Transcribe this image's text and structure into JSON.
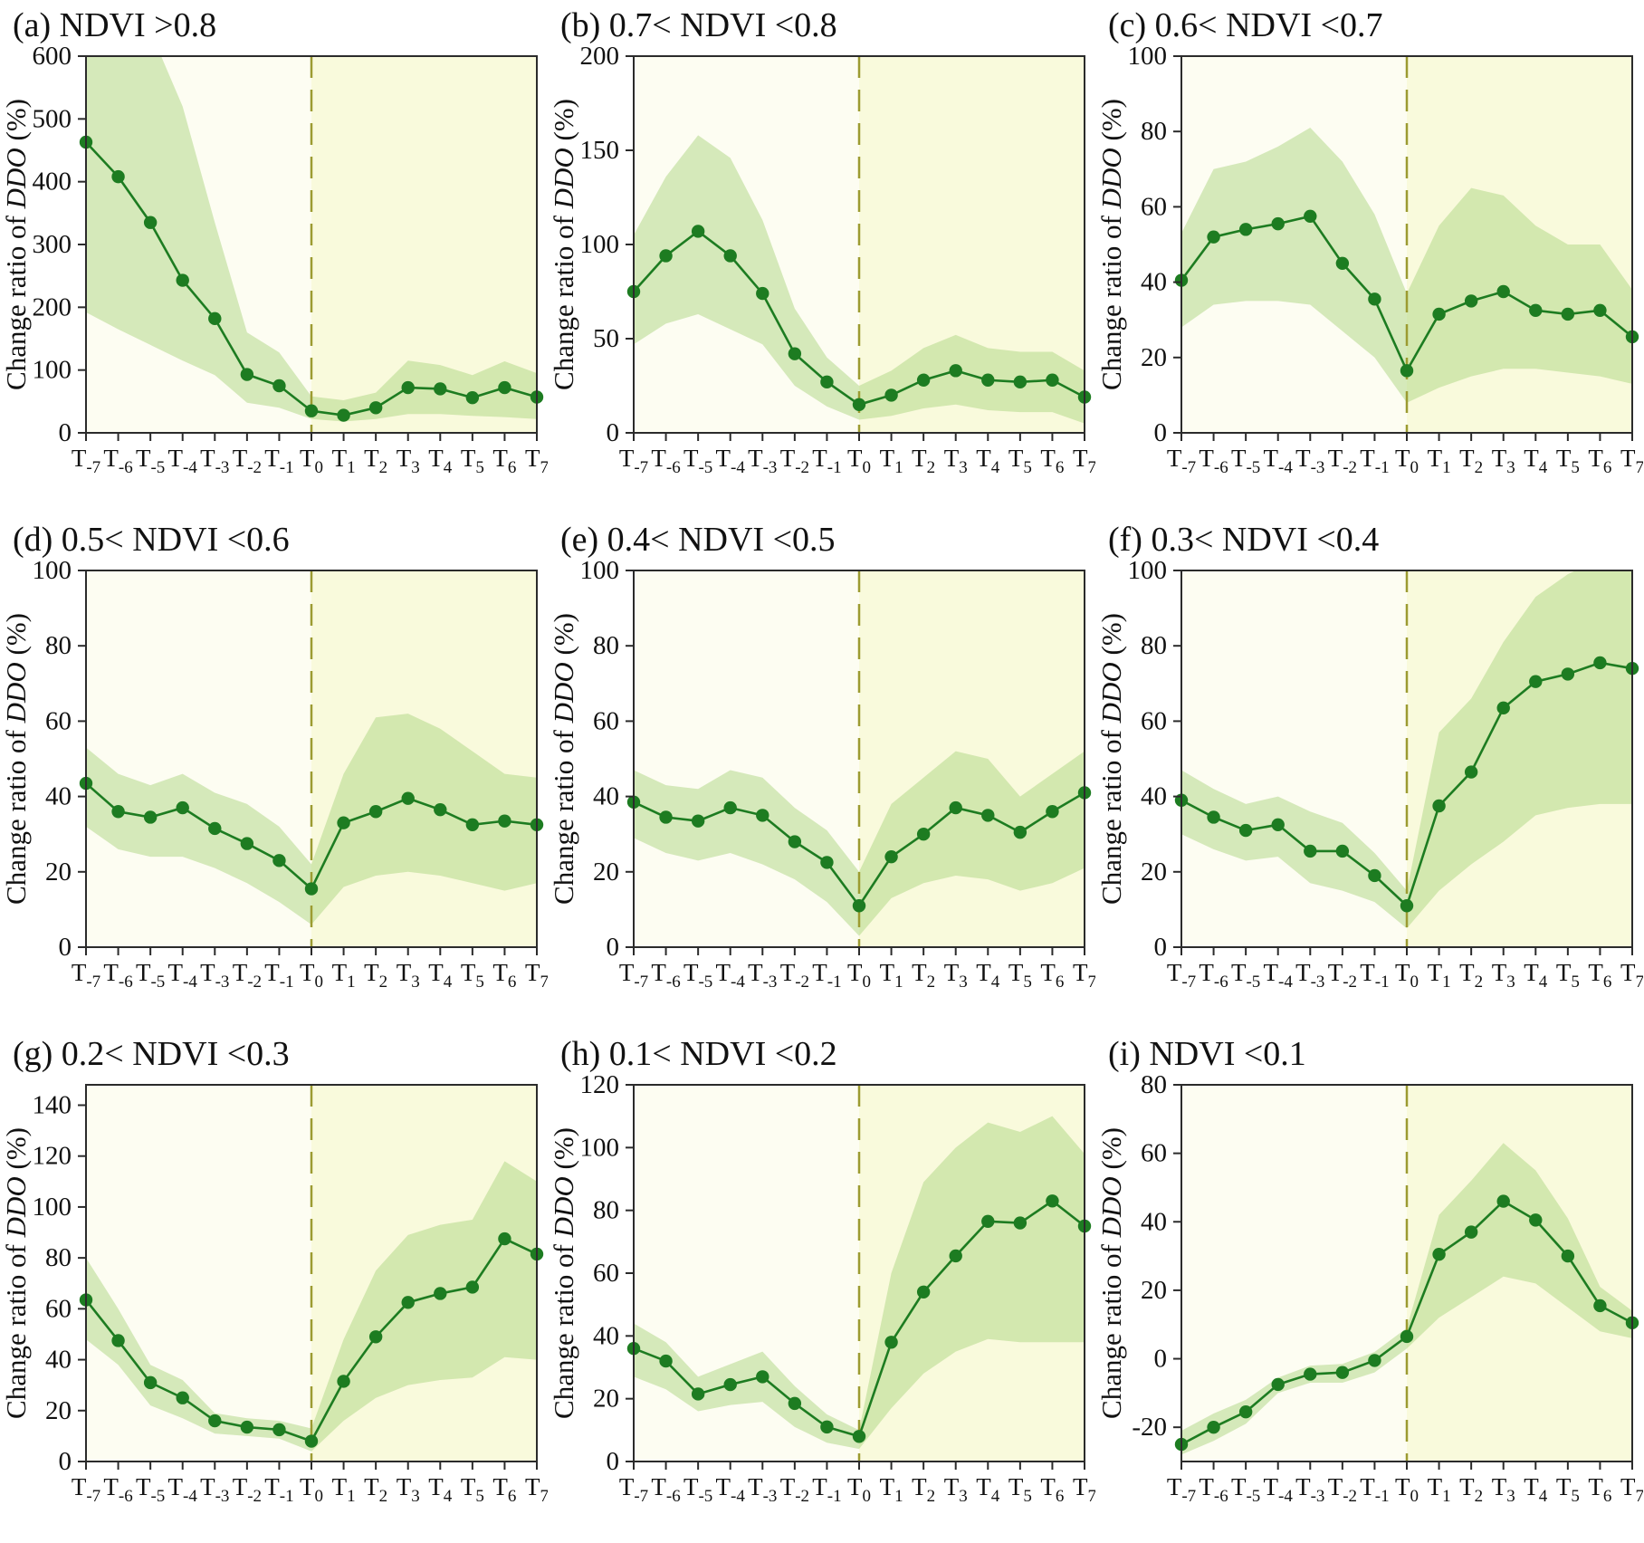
{
  "figure": {
    "ylabel": {
      "prefix": "Change ratio of ",
      "italic": "DDO",
      "suffix": " (%)"
    },
    "x_category_main": "T",
    "colors": {
      "line": "#1d7c21",
      "marker": "#1d7c21",
      "band": "#aed581",
      "band_opacity": 0.5,
      "left_background": "#fdfdf2",
      "right_background": "#f9fadc",
      "event_line": "#9c9b31",
      "axis": "#2b2b2b",
      "text": "#111111"
    }
  },
  "chart_data": [
    {
      "type": "line",
      "label": "(a)",
      "title": "NDVI >0.8",
      "ylim": [
        0,
        600
      ],
      "yticks": [
        0,
        100,
        200,
        300,
        400,
        500,
        600
      ],
      "categories": [
        "T-7",
        "T-6",
        "T-5",
        "T-4",
        "T-3",
        "T-2",
        "T-1",
        "T0",
        "T1",
        "T2",
        "T3",
        "T4",
        "T5",
        "T6",
        "T7"
      ],
      "event_index": 7,
      "values": [
        463,
        408,
        335,
        243,
        182,
        93,
        75,
        35,
        28,
        40,
        72,
        70,
        56,
        72,
        57
      ],
      "band_upper": [
        650,
        650,
        640,
        520,
        335,
        160,
        128,
        58,
        52,
        64,
        115,
        108,
        92,
        114,
        95
      ],
      "band_lower": [
        192,
        165,
        140,
        115,
        92,
        48,
        40,
        22,
        18,
        22,
        30,
        30,
        27,
        25,
        22
      ]
    },
    {
      "type": "line",
      "label": "(b)",
      "title": "0.7< NDVI <0.8",
      "ylim": [
        0,
        200
      ],
      "yticks": [
        0,
        50,
        100,
        150,
        200
      ],
      "categories": [
        "T-7",
        "T-6",
        "T-5",
        "T-4",
        "T-3",
        "T-2",
        "T-1",
        "T0",
        "T1",
        "T2",
        "T3",
        "T4",
        "T5",
        "T6",
        "T7"
      ],
      "event_index": 7,
      "values": [
        75,
        94,
        107,
        94,
        74,
        42,
        27,
        15,
        20,
        28,
        33,
        28,
        27,
        28,
        19
      ],
      "band_upper": [
        105,
        136,
        158,
        146,
        113,
        66,
        40,
        25,
        33,
        45,
        52,
        45,
        43,
        43,
        33
      ],
      "band_lower": [
        47,
        58,
        63,
        55,
        47,
        25,
        14,
        7,
        9,
        13,
        15,
        12,
        11,
        11,
        5
      ]
    },
    {
      "type": "line",
      "label": "(c)",
      "title": "0.6< NDVI <0.7",
      "ylim": [
        0,
        100
      ],
      "yticks": [
        0,
        20,
        40,
        60,
        80,
        100
      ],
      "categories": [
        "T-7",
        "T-6",
        "T-5",
        "T-4",
        "T-3",
        "T-2",
        "T-1",
        "T0",
        "T1",
        "T2",
        "T3",
        "T4",
        "T5",
        "T6",
        "T7"
      ],
      "event_index": 7,
      "values": [
        40.5,
        52,
        54,
        55.5,
        57.5,
        45,
        35.5,
        16.5,
        31.5,
        35,
        37.5,
        32.5,
        31.5,
        32.5,
        25.5
      ],
      "band_upper": [
        53,
        70,
        72,
        76,
        81,
        72,
        58,
        37,
        55,
        65,
        63,
        55,
        50,
        50,
        38
      ],
      "band_lower": [
        28,
        34,
        35,
        35,
        34,
        27,
        20,
        8,
        12,
        15,
        17,
        17,
        16,
        15,
        13
      ]
    },
    {
      "type": "line",
      "label": "(d)",
      "title": "0.5< NDVI <0.6",
      "ylim": [
        0,
        100
      ],
      "yticks": [
        0,
        20,
        40,
        60,
        80,
        100
      ],
      "categories": [
        "T-7",
        "T-6",
        "T-5",
        "T-4",
        "T-3",
        "T-2",
        "T-1",
        "T0",
        "T1",
        "T2",
        "T3",
        "T4",
        "T5",
        "T6",
        "T7"
      ],
      "event_index": 7,
      "values": [
        43.5,
        36,
        34.5,
        37,
        31.5,
        27.5,
        23,
        15.5,
        33,
        36,
        39.5,
        36.5,
        32.5,
        33.5,
        32.5
      ],
      "band_upper": [
        53,
        46,
        43,
        46,
        41,
        38,
        32,
        22,
        46,
        61,
        62,
        58,
        52,
        46,
        45
      ],
      "band_lower": [
        32,
        26,
        24,
        24,
        21,
        17,
        12,
        6,
        16,
        19,
        20,
        19,
        17,
        15,
        17
      ]
    },
    {
      "type": "line",
      "label": "(e)",
      "title": "0.4< NDVI <0.5",
      "ylim": [
        0,
        100
      ],
      "yticks": [
        0,
        20,
        40,
        60,
        80,
        100
      ],
      "categories": [
        "T-7",
        "T-6",
        "T-5",
        "T-4",
        "T-3",
        "T-2",
        "T-1",
        "T0",
        "T1",
        "T2",
        "T3",
        "T4",
        "T5",
        "T6",
        "T7"
      ],
      "event_index": 7,
      "values": [
        38.5,
        34.5,
        33.5,
        37,
        35,
        28,
        22.5,
        11,
        24,
        30,
        37,
        35,
        30.5,
        36,
        41
      ],
      "band_upper": [
        47,
        43,
        42,
        47,
        45,
        37,
        31,
        20,
        38,
        45,
        52,
        50,
        40,
        46,
        52
      ],
      "band_lower": [
        29,
        25,
        23,
        25,
        22,
        18,
        12,
        3,
        13,
        17,
        19,
        18,
        15,
        17,
        21
      ]
    },
    {
      "type": "line",
      "label": "(f)",
      "title": "0.3< NDVI <0.4",
      "ylim": [
        0,
        100
      ],
      "yticks": [
        0,
        20,
        40,
        60,
        80,
        100
      ],
      "categories": [
        "T-7",
        "T-6",
        "T-5",
        "T-4",
        "T-3",
        "T-2",
        "T-1",
        "T0",
        "T1",
        "T2",
        "T3",
        "T4",
        "T5",
        "T6",
        "T7"
      ],
      "event_index": 7,
      "values": [
        39,
        34.5,
        31,
        32.5,
        25.5,
        25.5,
        19,
        11,
        37.5,
        46.5,
        63.5,
        70.5,
        72.5,
        75.5,
        74
      ],
      "band_upper": [
        47,
        42,
        38,
        40,
        36,
        33,
        25,
        15,
        57,
        66,
        81,
        93,
        99,
        103,
        101
      ],
      "band_lower": [
        30,
        26,
        23,
        24,
        17,
        15,
        12,
        5,
        15,
        22,
        28,
        35,
        37,
        38,
        38
      ]
    },
    {
      "type": "line",
      "label": "(g)",
      "title": "0.2< NDVI <0.3",
      "ylim": [
        0,
        148
      ],
      "yticks": [
        0,
        20,
        40,
        60,
        80,
        100,
        120,
        140
      ],
      "categories": [
        "T-7",
        "T-6",
        "T-5",
        "T-4",
        "T-3",
        "T-2",
        "T-1",
        "T0",
        "T1",
        "T2",
        "T3",
        "T4",
        "T5",
        "T6",
        "T7"
      ],
      "event_index": 7,
      "values": [
        63.5,
        47.5,
        31,
        25,
        16,
        13.5,
        12.5,
        8,
        31.5,
        49,
        62.5,
        66,
        68.5,
        87.5,
        81.5
      ],
      "band_upper": [
        80,
        60,
        38,
        32,
        19,
        17,
        16,
        13,
        48,
        75,
        89,
        93,
        95,
        118,
        110
      ],
      "band_lower": [
        48,
        38,
        22,
        17,
        11,
        10,
        9,
        4,
        16,
        25,
        30,
        32,
        33,
        41,
        40
      ]
    },
    {
      "type": "line",
      "label": "(h)",
      "title": "0.1< NDVI <0.2",
      "ylim": [
        0,
        120
      ],
      "yticks": [
        0,
        20,
        40,
        60,
        80,
        100,
        120
      ],
      "categories": [
        "T-7",
        "T-6",
        "T-5",
        "T-4",
        "T-3",
        "T-2",
        "T-1",
        "T0",
        "T1",
        "T2",
        "T3",
        "T4",
        "T5",
        "T6",
        "T7"
      ],
      "event_index": 7,
      "values": [
        36,
        32,
        21.5,
        24.5,
        27,
        18.5,
        11,
        8,
        38,
        54,
        65.5,
        76.5,
        76,
        83,
        75
      ],
      "band_upper": [
        44,
        38,
        27,
        31,
        35,
        24,
        15,
        10,
        60,
        89,
        100,
        108,
        105,
        110,
        98
      ],
      "band_lower": [
        27,
        23,
        16,
        18,
        19,
        11,
        6,
        4,
        17,
        28,
        35,
        39,
        38,
        38,
        38
      ]
    },
    {
      "type": "line",
      "label": "(i)",
      "title": "NDVI <0.1",
      "ylim": [
        -30,
        80
      ],
      "yticks": [
        -20,
        0,
        20,
        40,
        60,
        80
      ],
      "categories": [
        "T-7",
        "T-6",
        "T-5",
        "T-4",
        "T-3",
        "T-2",
        "T-1",
        "T0",
        "T1",
        "T2",
        "T3",
        "T4",
        "T5",
        "T6",
        "T7"
      ],
      "event_index": 7,
      "values": [
        -25,
        -20,
        -15.5,
        -7.5,
        -4.5,
        -4,
        -0.5,
        6.5,
        30.5,
        37,
        46,
        40.5,
        30,
        15.5,
        10.5
      ],
      "band_upper": [
        -21,
        -16,
        -12,
        -5.5,
        -2,
        -1.5,
        2,
        9,
        42,
        52,
        63,
        55,
        41,
        21,
        14
      ],
      "band_lower": [
        -28,
        -24,
        -19,
        -10,
        -7,
        -7,
        -4,
        3,
        12,
        18,
        24,
        22,
        15,
        8,
        6
      ]
    }
  ]
}
